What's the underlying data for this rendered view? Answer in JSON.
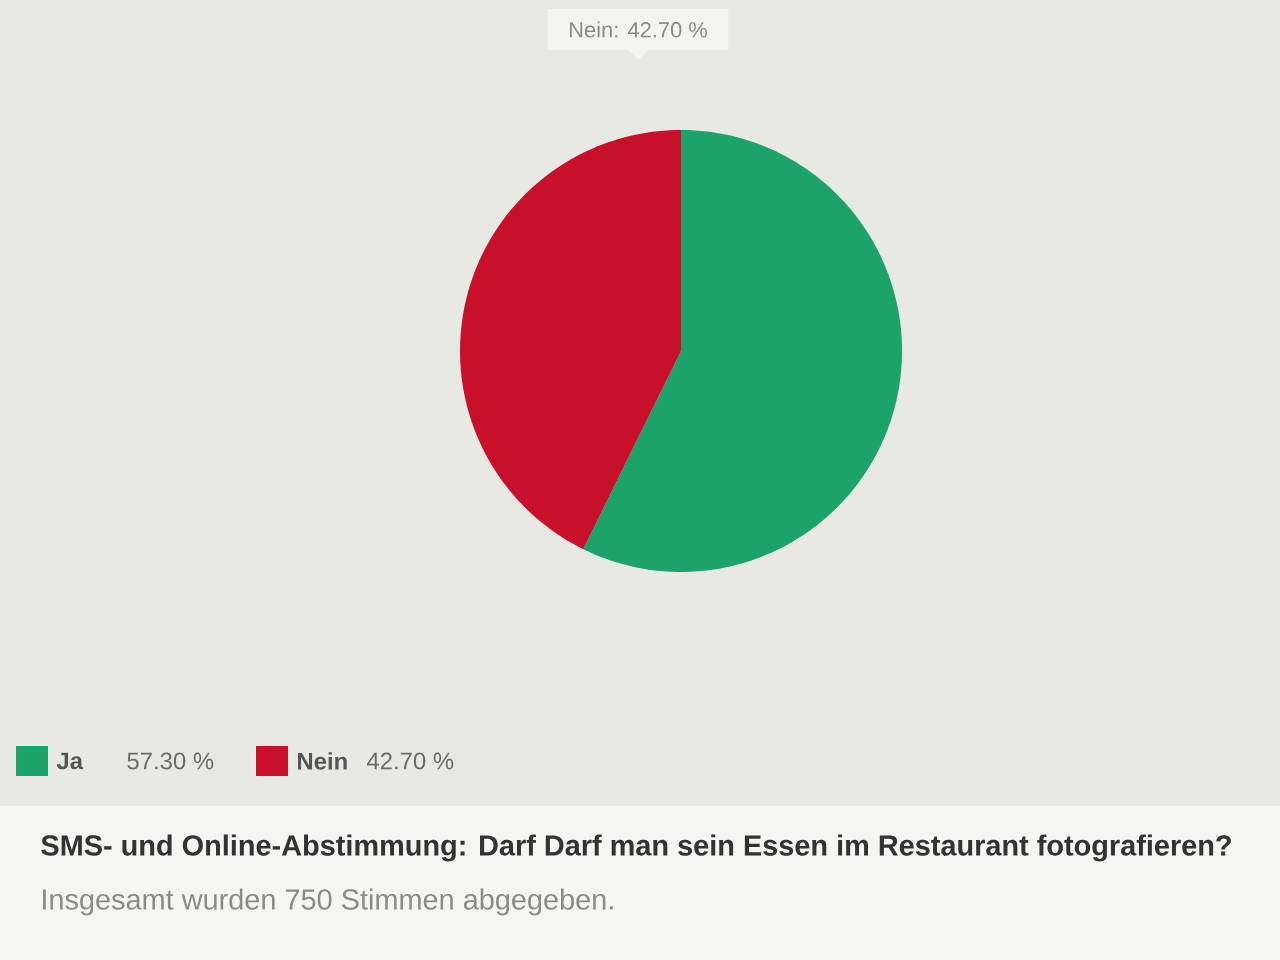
{
  "chart_data": {
    "type": "pie",
    "title": "SMS- und Online-Abstimmung: Darf Darf man sein Essen im Restaurant fotografieren?",
    "subtitle": "Insgesamt wurden 750 Stimmen abgegeben.",
    "categories": [
      "Ja",
      "Nein"
    ],
    "values": [
      57.3,
      42.7
    ],
    "colors": [
      "#1ba36a",
      "#c8102a"
    ],
    "value_labels": [
      "57.30 %",
      "42.70 %"
    ],
    "annotations": [
      "Nein: 42.70 %"
    ],
    "legend": "bottom left"
  }
}
